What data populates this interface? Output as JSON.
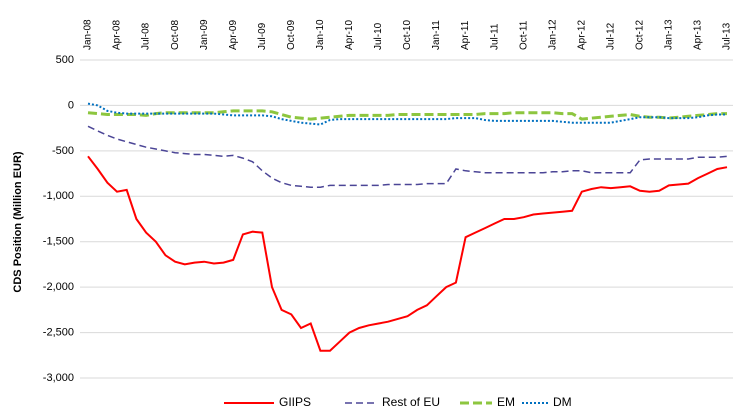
{
  "chart_data": {
    "type": "line",
    "y_label": "CDS Position (Million EUR)",
    "categories": [
      "Jan-08",
      null,
      null,
      "Apr-08",
      null,
      null,
      "Jul-08",
      null,
      null,
      "Oct-08",
      null,
      null,
      "Jan-09",
      null,
      null,
      "Apr-09",
      null,
      null,
      "Jul-09",
      null,
      null,
      "Oct-09",
      null,
      null,
      "Jan-10",
      null,
      null,
      "Apr-10",
      null,
      null,
      "Jul-10",
      null,
      null,
      "Oct-10",
      null,
      null,
      "Jan-11",
      null,
      null,
      "Apr-11",
      null,
      null,
      "Jul-11",
      null,
      null,
      "Oct-11",
      null,
      null,
      "Jan-12",
      null,
      null,
      "Apr-12",
      null,
      null,
      "Jul-12",
      null,
      null,
      "Oct-12",
      null,
      null,
      "Jan-13",
      null,
      null,
      "Apr-13",
      null,
      null,
      "Jul-13"
    ],
    "series": [
      {
        "name": "GIIPS",
        "color": "#ff0000",
        "values": [
          -560,
          -700,
          -850,
          -950,
          -930,
          -1250,
          -1400,
          -1500,
          -1650,
          -1720,
          -1750,
          -1730,
          -1720,
          -1740,
          -1730,
          -1700,
          -1420,
          -1390,
          -1400,
          -2000,
          -2250,
          -2300,
          -2450,
          -2400,
          -2700,
          -2700,
          -2600,
          -2500,
          -2450,
          -2420,
          -2400,
          -2380,
          -2350,
          -2320,
          -2250,
          -2200,
          -2100,
          -2000,
          -1950,
          -1450,
          -1400,
          -1350,
          -1300,
          -1250,
          -1250,
          -1230,
          -1200,
          -1190,
          -1180,
          -1170,
          -1160,
          -950,
          -920,
          -900,
          -910,
          -900,
          -890,
          -940,
          -950,
          -940,
          -880,
          -870,
          -860,
          -800,
          -750,
          -700,
          -680
        ]
      },
      {
        "name": "Rest of EU",
        "color": "#4b4596",
        "values": [
          -230,
          -280,
          -330,
          -370,
          -400,
          -430,
          -460,
          -480,
          -500,
          -520,
          -530,
          -540,
          -540,
          -550,
          -560,
          -550,
          -580,
          -620,
          -720,
          -800,
          -850,
          -880,
          -890,
          -900,
          -900,
          -880,
          -880,
          -880,
          -880,
          -880,
          -880,
          -870,
          -870,
          -870,
          -870,
          -860,
          -860,
          -860,
          -700,
          -720,
          -730,
          -740,
          -740,
          -740,
          -740,
          -740,
          -740,
          -740,
          -730,
          -730,
          -720,
          -720,
          -740,
          -740,
          -740,
          -740,
          -740,
          -600,
          -590,
          -590,
          -590,
          -590,
          -590,
          -570,
          -570,
          -570,
          -560
        ]
      },
      {
        "name": "EM",
        "color": "#8dc63f",
        "values": [
          -80,
          -90,
          -100,
          -100,
          -100,
          -100,
          -110,
          -90,
          -80,
          -80,
          -80,
          -80,
          -80,
          -80,
          -70,
          -60,
          -60,
          -60,
          -60,
          -70,
          -100,
          -130,
          -140,
          -150,
          -140,
          -130,
          -120,
          -110,
          -110,
          -110,
          -110,
          -110,
          -100,
          -100,
          -100,
          -100,
          -100,
          -100,
          -100,
          -100,
          -100,
          -90,
          -90,
          -90,
          -80,
          -80,
          -80,
          -80,
          -80,
          -90,
          -90,
          -150,
          -140,
          -130,
          -120,
          -110,
          -100,
          -120,
          -130,
          -130,
          -140,
          -130,
          -120,
          -110,
          -100,
          -90,
          -90
        ]
      },
      {
        "name": "DM",
        "color": "#0070c0",
        "values": [
          20,
          0,
          -60,
          -80,
          -90,
          -90,
          -90,
          -90,
          -90,
          -90,
          -90,
          -90,
          -90,
          -90,
          -100,
          -110,
          -110,
          -110,
          -110,
          -120,
          -150,
          -170,
          -190,
          -200,
          -210,
          -160,
          -150,
          -150,
          -150,
          -150,
          -150,
          -150,
          -150,
          -150,
          -150,
          -150,
          -150,
          -150,
          -140,
          -140,
          -140,
          -160,
          -170,
          -170,
          -170,
          -170,
          -170,
          -170,
          -170,
          -180,
          -190,
          -190,
          -190,
          -190,
          -190,
          -170,
          -150,
          -130,
          -130,
          -130,
          -140,
          -140,
          -140,
          -130,
          -110,
          -100,
          -100
        ]
      }
    ],
    "ylim": [
      -3000,
      500
    ],
    "yticks": [
      {
        "value": -3000,
        "label": "-3,000"
      },
      {
        "value": -2500,
        "label": "-2,500"
      },
      {
        "value": -2000,
        "label": "-2,000"
      },
      {
        "value": -1500,
        "label": "-1,500"
      },
      {
        "value": -1000,
        "label": "-1,000"
      },
      -500,
      0,
      500
    ],
    "grid": true,
    "legend": "bottom"
  }
}
